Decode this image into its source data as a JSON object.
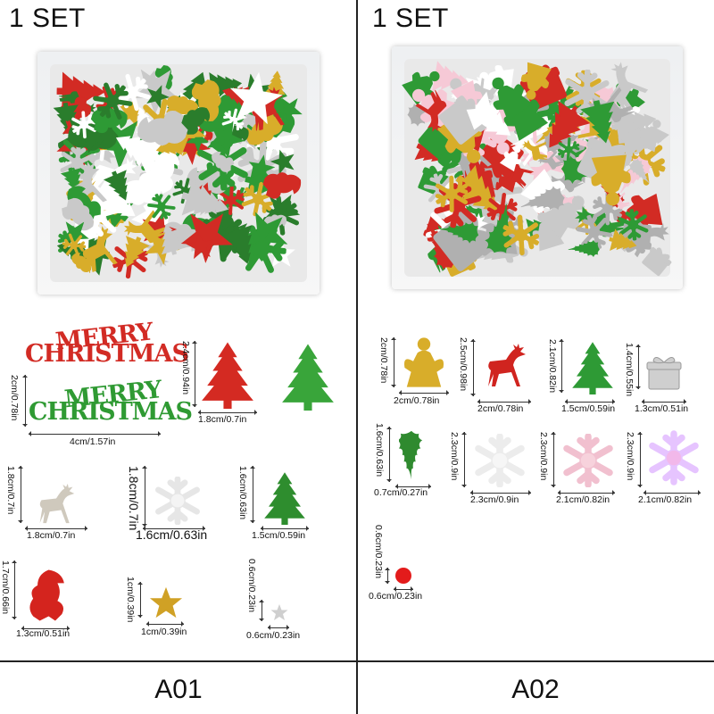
{
  "sets": {
    "left": {
      "title": "1 SET",
      "code": "A01"
    },
    "right": {
      "title": "1 SET",
      "code": "A02"
    }
  },
  "pieces_a01": {
    "merry_christmas_red": {
      "line1": "MERRY",
      "line2": "CHRISTMAS",
      "color": "#d22b24"
    },
    "merry_christmas_green": {
      "line1": "MERRY",
      "line2": "CHRISTMAS",
      "height": "2cm/0.78in",
      "width": "4cm/1.57in",
      "color": "#2f9a33"
    },
    "tree_large": {
      "height": "2.4cm/0.94in",
      "width": "1.8cm/0.7in"
    },
    "reindeer": {
      "height": "1.8cm/0.7in",
      "width": "1.8cm/0.7in"
    },
    "snowflake_white": {
      "height": "1.8cm/0.7in",
      "width": "1.6cm/0.63in"
    },
    "tree_small": {
      "height": "1.6cm/0.63in",
      "width": "1.5cm/0.59in"
    },
    "santa": {
      "height": "1.7cm/0.66in",
      "width": "1.3cm/0.51in"
    },
    "star_gold": {
      "height": "1cm/0.39in",
      "width": "1cm/0.39in"
    },
    "star_silver": {
      "height": "0.6cm/0.23in",
      "width": "0.6cm/0.23in"
    }
  },
  "pieces_a02": {
    "angel": {
      "height": "2cm/0.78in",
      "width": "2cm/0.78in"
    },
    "reindeer_red": {
      "height": "2.5cm/0.98in",
      "width": "2cm/0.78in"
    },
    "tree": {
      "height": "2.1cm/0.82in",
      "width": "1.5cm/0.59in"
    },
    "gift": {
      "height": "1.4cm/0.55in",
      "width": "1.3cm/0.51in"
    },
    "holly": {
      "height": "1.6cm/0.63in",
      "width": "0.7cm/0.27in"
    },
    "snowflake_white": {
      "height": "2.3cm/0.9in",
      "width": "2.3cm/0.9in"
    },
    "snowflake_pink": {
      "height": "2.3cm/0.9in",
      "width": "2.1cm/0.82in"
    },
    "snowflake_iridescent": {
      "height": "2.3cm/0.9in",
      "width": "2.1cm/0.82in"
    },
    "dot_red": {
      "height": "0.6cm/0.23in",
      "width": "0.6cm/0.23in"
    }
  },
  "colors": {
    "red": "#d22b24",
    "green": "#2e9a35",
    "gold": "#d8ad2a",
    "silver": "#c9c9c9",
    "pink": "#f6c9d6"
  }
}
